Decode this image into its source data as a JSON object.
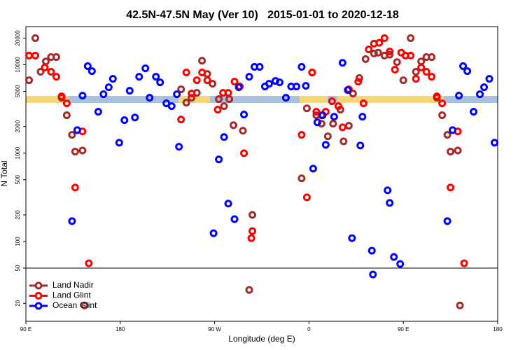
{
  "chart_data": {
    "type": "scatter",
    "title": "42.5N-47.5N May (Ver 10)   2015-01-01 to 2020-12-18",
    "x_label": "Longitude (deg E)",
    "y_label": "N Total",
    "log_y": true,
    "xlim": [
      90,
      540
    ],
    "xticks": [
      {
        "value": 90,
        "label": "90 E"
      },
      180,
      {
        "value": 270,
        "label": "90 W"
      },
      {
        "value": 360,
        "label": "0"
      },
      {
        "value": 450,
        "label": "90 E"
      },
      {
        "value": 540,
        "label": "180"
      }
    ],
    "ylim": [
      12.5,
      27000
    ],
    "yticks": [
      20,
      50,
      100,
      200,
      500,
      1000,
      2000,
      5000,
      10000,
      20000
    ],
    "hline": 50,
    "legend": "lower left",
    "series": [
      {
        "name": "Land Nadir",
        "color": "#a52a2a",
        "x": [
          93,
          99,
          104,
          109,
          114,
          119,
          124,
          129,
          134,
          137,
          144,
          146,
          238,
          243,
          248,
          253,
          258,
          263,
          268,
          274,
          279,
          284,
          288,
          297,
          303,
          306,
          353,
          358,
          363,
          367,
          372,
          378,
          383,
          390,
          393,
          398,
          402,
          408,
          414,
          422,
          426,
          432,
          437,
          444,
          450,
          457,
          462,
          467,
          472,
          477,
          482,
          487,
          492,
          495,
          502,
          504
        ],
        "values": [
          6680,
          20000,
          8320,
          10900,
          12200,
          12200,
          4230,
          2680,
          1610,
          1040,
          1070,
          18.9,
          5270,
          3720,
          4230,
          4810,
          11100,
          7870,
          6100,
          4080,
          3400,
          4080,
          2070,
          1790,
          28.3,
          200,
          518,
          3210,
          8170,
          2680,
          2150,
          1550,
          2150,
          3100,
          1360,
          2040,
          4720,
          7060,
          11600,
          13400,
          13700,
          12700,
          13000,
          10700,
          6680,
          20000,
          8320,
          10900,
          12200,
          12200,
          4230,
          2680,
          1610,
          1040,
          1070,
          18.9
        ]
      },
      {
        "name": "Land Glint",
        "color": "#ff0000",
        "x": [
          93,
          99,
          108,
          114,
          119,
          124,
          129,
          137,
          144,
          150,
          238,
          243,
          248,
          253,
          258,
          263,
          273,
          278,
          283,
          289,
          294,
          298,
          305,
          306,
          353,
          358,
          363,
          367,
          372,
          376,
          382,
          388,
          392,
          398,
          407,
          412,
          417,
          422,
          427,
          432,
          437,
          442,
          448,
          452,
          457,
          462,
          467,
          472,
          477,
          482,
          487,
          495,
          502,
          508
        ],
        "values": [
          12700,
          12700,
          9290,
          8320,
          7310,
          4390,
          3660,
          408,
          1760,
          56.7,
          2400,
          8170,
          4720,
          6680,
          8170,
          6680,
          3100,
          4810,
          4810,
          6440,
          5670,
          998,
          109,
          131,
          1610,
          316,
          8170,
          2940,
          2680,
          2940,
          3860,
          3400,
          1960,
          5270,
          6440,
          3660,
          14900,
          17300,
          17700,
          20000,
          14100,
          8790,
          13700,
          12700,
          12700,
          6930,
          9290,
          8320,
          7310,
          4390,
          3660,
          408,
          1760,
          56.7
        ]
      },
      {
        "name": "Ocean Glint",
        "color": "#0000ff",
        "x": [
          134,
          139,
          144,
          149,
          153,
          159,
          164,
          169,
          173,
          179,
          184,
          189,
          194,
          198,
          204,
          208,
          214,
          218,
          224,
          229,
          234,
          236,
          269,
          274,
          279,
          283,
          289,
          293,
          298,
          303,
          308,
          313,
          318,
          322,
          328,
          332,
          338,
          343,
          348,
          353,
          357,
          364,
          368,
          373,
          376,
          384,
          392,
          397,
          401,
          409,
          411,
          420,
          421,
          435,
          437,
          441,
          447,
          492,
          497,
          503,
          507,
          511,
          517,
          523,
          527,
          532,
          537
        ],
        "values": [
          170,
          1820,
          4470,
          9640,
          8470,
          2940,
          4640,
          5560,
          6930,
          1310,
          2360,
          5080,
          2530,
          7310,
          9110,
          4230,
          7310,
          6320,
          3660,
          3400,
          4640,
          1180,
          124,
          848,
          1520,
          268,
          179,
          5560,
          2730,
          7310,
          9460,
          9460,
          5670,
          6100,
          6560,
          6320,
          4230,
          5670,
          5670,
          9460,
          5770,
          668,
          2230,
          2680,
          1240,
          2580,
          10500,
          5170,
          109,
          1220,
          2580,
          78.7,
          42.3,
          379,
          273,
          66.8,
          55.6,
          170,
          1820,
          4470,
          9640,
          8470,
          2940,
          4640,
          5560,
          6930,
          1310
        ]
      }
    ]
  }
}
